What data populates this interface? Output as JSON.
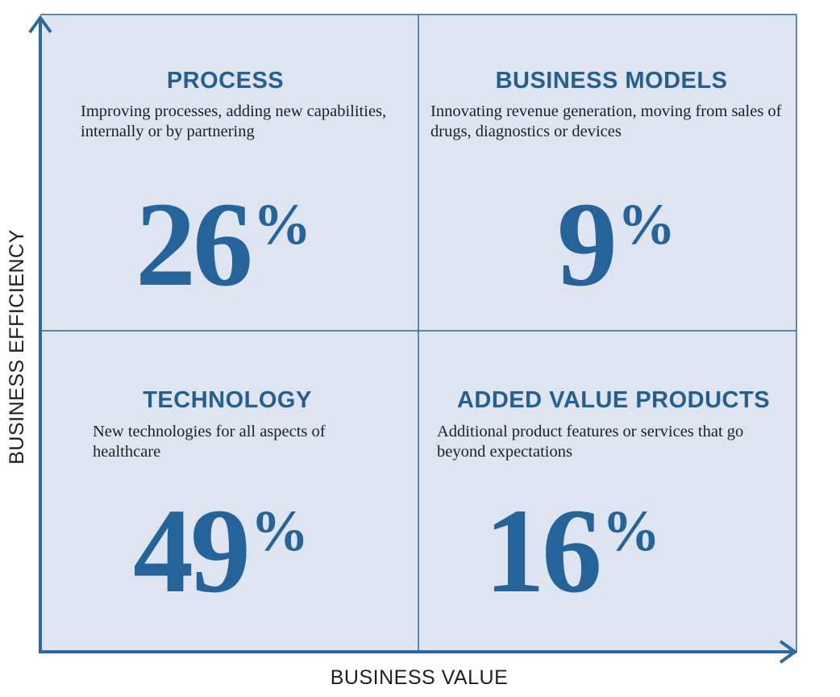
{
  "axes": {
    "y_label": "BUSINESS EFFICIENCY",
    "x_label": "BUSINESS VALUE"
  },
  "quadrants": [
    {
      "position": "top-left",
      "title": "PROCESS",
      "description": "Improving processes, adding new capabilities, internally or by partnering",
      "value": "26",
      "unit": "%"
    },
    {
      "position": "top-right",
      "title": "BUSINESS MODELS",
      "description": "Innovating revenue generation, moving from sales of drugs, diagnostics or devices",
      "value": "9",
      "unit": "%"
    },
    {
      "position": "bottom-left",
      "title": "TECHNOLOGY",
      "description": "New technologies for all aspects of healthcare",
      "value": "49",
      "unit": "%"
    },
    {
      "position": "bottom-right",
      "title": "ADDED VALUE PRODUCTS",
      "description": "Additional product features or services that go beyond expectations",
      "value": "16",
      "unit": "%"
    }
  ],
  "colors": {
    "background": "#dfe5f0",
    "axis": "#2a6aa3",
    "grid": "#2a6aa3",
    "title": "#245f93",
    "value": "#24649b",
    "text": "#1f1f1f"
  }
}
